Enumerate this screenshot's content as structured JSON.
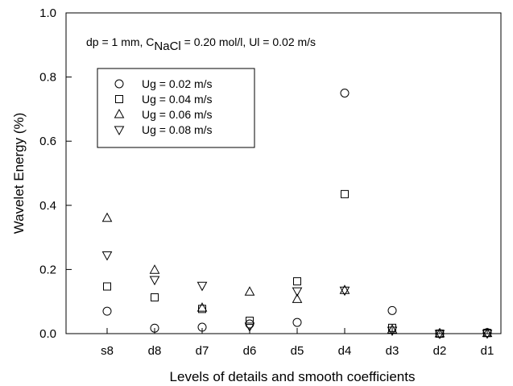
{
  "chart_data": {
    "type": "scatter",
    "annotation": {
      "prefix": "dp = 1 mm, C",
      "subscript": "NaCl",
      "suffix": " = 0.20 mol/l, Ul = 0.02 m/s"
    },
    "xlabel": "Levels of details and smooth coefficients",
    "ylabel": "Wavelet Energy (%)",
    "categories": [
      "s8",
      "d8",
      "d7",
      "d6",
      "d5",
      "d4",
      "d3",
      "d2",
      "d1"
    ],
    "ylim": [
      0,
      1.0
    ],
    "yticks": [
      "0.0",
      "0.2",
      "0.4",
      "0.6",
      "0.8",
      "1.0"
    ],
    "grid": false,
    "legend_position": "top-left",
    "series": [
      {
        "name": "Ug = 0.02 m/s",
        "marker": "circle",
        "values": [
          0.07,
          0.017,
          0.02,
          0.03,
          0.035,
          0.75,
          0.072,
          0.0,
          0.003
        ]
      },
      {
        "name": "Ug = 0.04 m/s",
        "marker": "square",
        "values": [
          0.147,
          0.113,
          0.077,
          0.04,
          0.163,
          0.435,
          0.018,
          0.0,
          0.002
        ]
      },
      {
        "name": "Ug = 0.06 m/s",
        "marker": "triangle-up",
        "values": [
          0.36,
          0.198,
          0.08,
          0.13,
          0.107,
          0.135,
          0.012,
          0.0,
          0.001
        ]
      },
      {
        "name": "Ug = 0.08 m/s",
        "marker": "triangle-down",
        "values": [
          0.245,
          0.168,
          0.15,
          0.023,
          0.133,
          0.135,
          0.01,
          0.0,
          0.001
        ]
      }
    ]
  }
}
